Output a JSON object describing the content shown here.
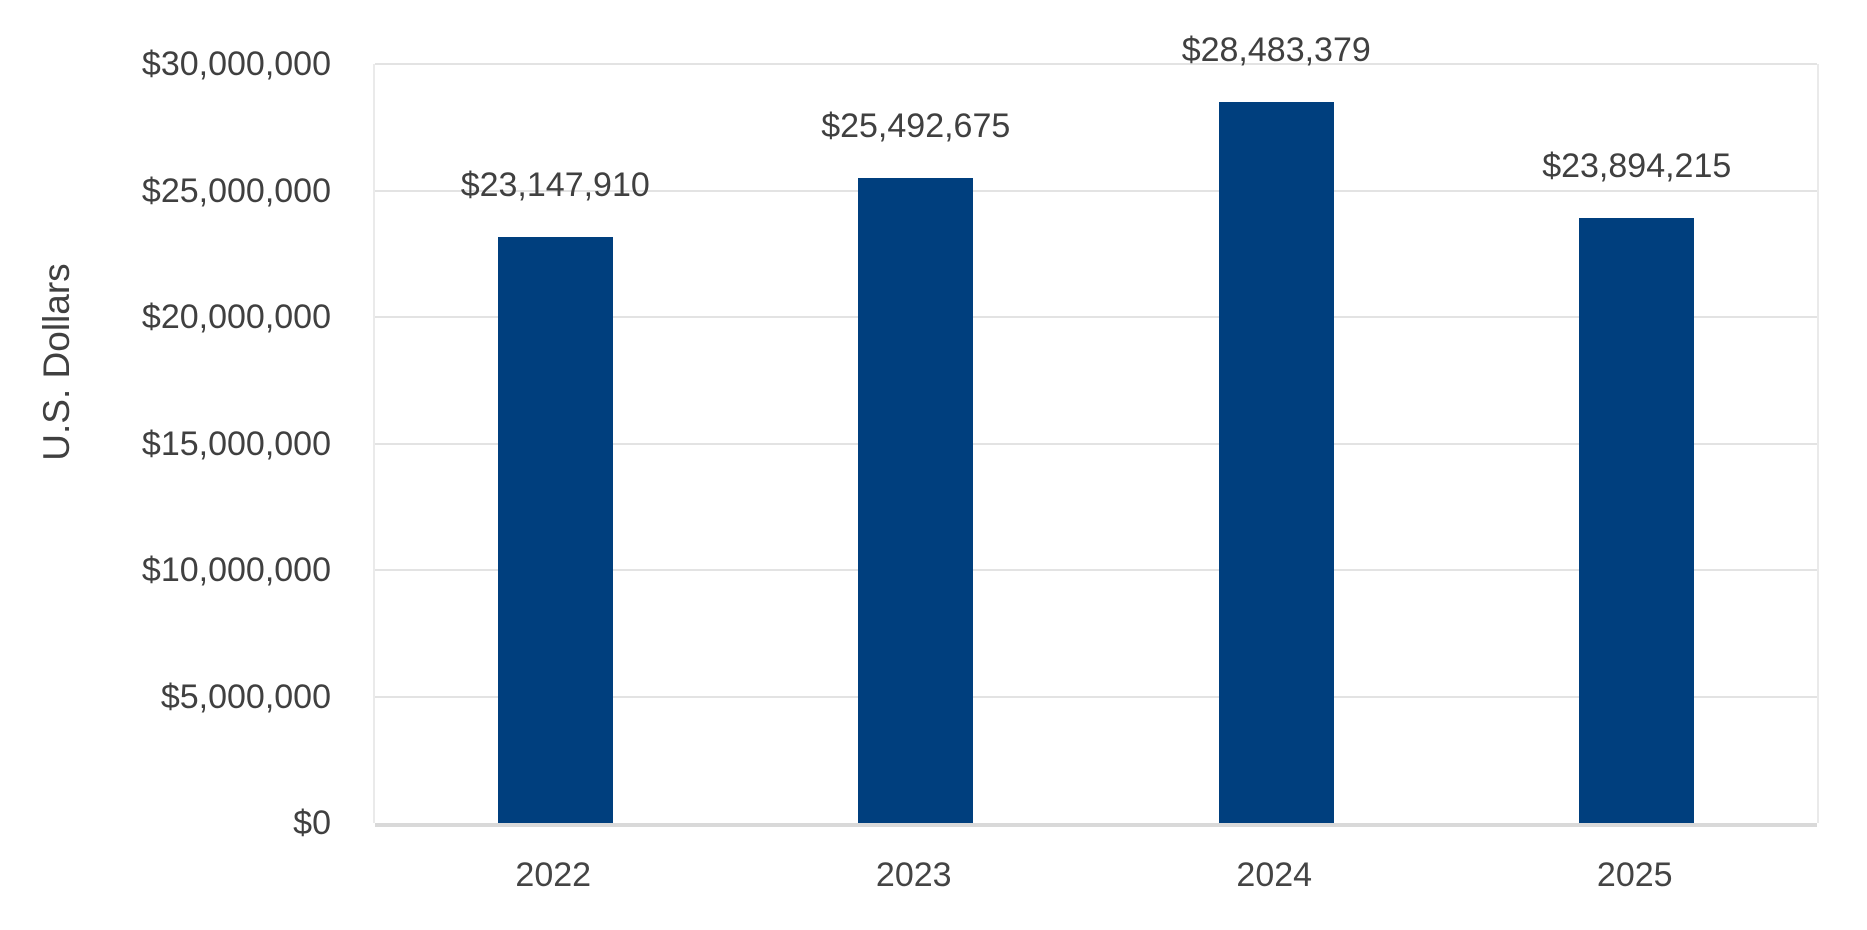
{
  "chart_data": {
    "type": "bar",
    "title": "",
    "categories": [
      "2022",
      "2023",
      "2024",
      "2025"
    ],
    "values": [
      23147910,
      25492675,
      28483379,
      23894215
    ],
    "data_labels": [
      "$23,147,910",
      "$25,492,675",
      "$28,483,379",
      "$23,894,215"
    ],
    "xlabel": "",
    "ylabel": "U.S. Dollars",
    "ylim": [
      0,
      30000000
    ],
    "ytick_interval": 5000000,
    "ytick_labels": [
      "$0",
      "$5,000,000",
      "$10,000,000",
      "$15,000,000",
      "$20,000,000",
      "$25,000,000",
      "$30,000,000"
    ],
    "grid": true,
    "legend_position": "none",
    "bar_color": "#003F7E",
    "text_color": "#404040",
    "gridline_color": "#E3E3E3",
    "baseline_color": "#D9D9D9"
  }
}
